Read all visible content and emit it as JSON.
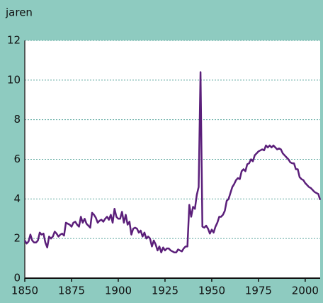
{
  "chart_data": {
    "type": "line",
    "ylabel": "jaren",
    "x": [
      1850,
      1851,
      1852,
      1853,
      1854,
      1855,
      1856,
      1857,
      1858,
      1859,
      1860,
      1861,
      1862,
      1863,
      1864,
      1865,
      1866,
      1867,
      1868,
      1869,
      1870,
      1871,
      1872,
      1873,
      1874,
      1875,
      1876,
      1877,
      1878,
      1879,
      1880,
      1881,
      1882,
      1883,
      1884,
      1885,
      1886,
      1887,
      1888,
      1889,
      1890,
      1891,
      1892,
      1893,
      1894,
      1895,
      1896,
      1897,
      1898,
      1899,
      1900,
      1901,
      1902,
      1903,
      1904,
      1905,
      1906,
      1907,
      1908,
      1909,
      1910,
      1911,
      1912,
      1913,
      1914,
      1915,
      1916,
      1917,
      1918,
      1919,
      1920,
      1921,
      1922,
      1923,
      1924,
      1925,
      1926,
      1927,
      1928,
      1929,
      1930,
      1931,
      1932,
      1933,
      1934,
      1935,
      1936,
      1937,
      1938,
      1939,
      1940,
      1941,
      1942,
      1943,
      1944,
      1945,
      1946,
      1947,
      1948,
      1949,
      1950,
      1951,
      1952,
      1953,
      1954,
      1955,
      1956,
      1957,
      1958,
      1959,
      1960,
      1961,
      1962,
      1963,
      1964,
      1965,
      1966,
      1967,
      1968,
      1969,
      1970,
      1971,
      1972,
      1973,
      1974,
      1975,
      1976,
      1977,
      1978,
      1979,
      1980,
      1981,
      1982,
      1983,
      1984,
      1985,
      1986,
      1987,
      1988,
      1989,
      1990,
      1991,
      1992,
      1993,
      1994,
      1995,
      1996,
      1997,
      1998,
      1999,
      2000,
      2001,
      2002,
      2003,
      2004,
      2005,
      2006,
      2007,
      2008
    ],
    "series": [
      {
        "name": "jaren",
        "color": "#5b1f7a",
        "values": [
          1.9,
          1.75,
          1.85,
          2.2,
          1.9,
          1.8,
          1.8,
          1.9,
          2.3,
          2.2,
          2.25,
          1.8,
          1.55,
          2.1,
          2.0,
          2.1,
          2.35,
          2.25,
          2.1,
          2.2,
          2.25,
          2.15,
          2.8,
          2.75,
          2.7,
          2.6,
          2.8,
          2.85,
          2.7,
          2.6,
          3.1,
          2.8,
          3.0,
          2.75,
          2.65,
          2.55,
          3.3,
          3.2,
          3.05,
          2.8,
          2.9,
          2.95,
          2.85,
          3.0,
          3.1,
          2.95,
          3.2,
          2.8,
          3.5,
          3.1,
          3.0,
          3.0,
          3.35,
          2.8,
          3.2,
          2.7,
          2.85,
          2.2,
          2.5,
          2.55,
          2.5,
          2.3,
          2.4,
          2.1,
          2.3,
          2.0,
          2.1,
          2.0,
          1.6,
          1.9,
          1.7,
          1.4,
          1.6,
          1.3,
          1.55,
          1.4,
          1.5,
          1.5,
          1.4,
          1.35,
          1.3,
          1.3,
          1.45,
          1.4,
          1.35,
          1.5,
          1.6,
          1.6,
          3.7,
          3.1,
          3.6,
          3.5,
          4.2,
          4.6,
          10.4,
          2.6,
          2.55,
          2.65,
          2.5,
          2.25,
          2.45,
          2.3,
          2.6,
          2.8,
          3.1,
          3.1,
          3.2,
          3.4,
          3.9,
          4.0,
          4.3,
          4.6,
          4.75,
          4.95,
          5.05,
          5.0,
          5.4,
          5.5,
          5.4,
          5.75,
          5.8,
          6.0,
          5.9,
          6.2,
          6.3,
          6.4,
          6.45,
          6.5,
          6.45,
          6.7,
          6.6,
          6.7,
          6.6,
          6.7,
          6.6,
          6.5,
          6.55,
          6.5,
          6.3,
          6.2,
          6.1,
          6.0,
          5.85,
          5.8,
          5.8,
          5.5,
          5.5,
          5.1,
          5.0,
          4.95,
          4.8,
          4.7,
          4.6,
          4.55,
          4.45,
          4.35,
          4.3,
          4.25,
          3.95
        ]
      }
    ],
    "xlim": [
      1850,
      2008
    ],
    "xticks": [
      1850,
      1875,
      1900,
      1925,
      1950,
      1975,
      2000
    ],
    "ylim": [
      0,
      12
    ],
    "yticks": [
      0,
      2,
      4,
      6,
      8,
      10,
      12
    ],
    "grid": true
  }
}
